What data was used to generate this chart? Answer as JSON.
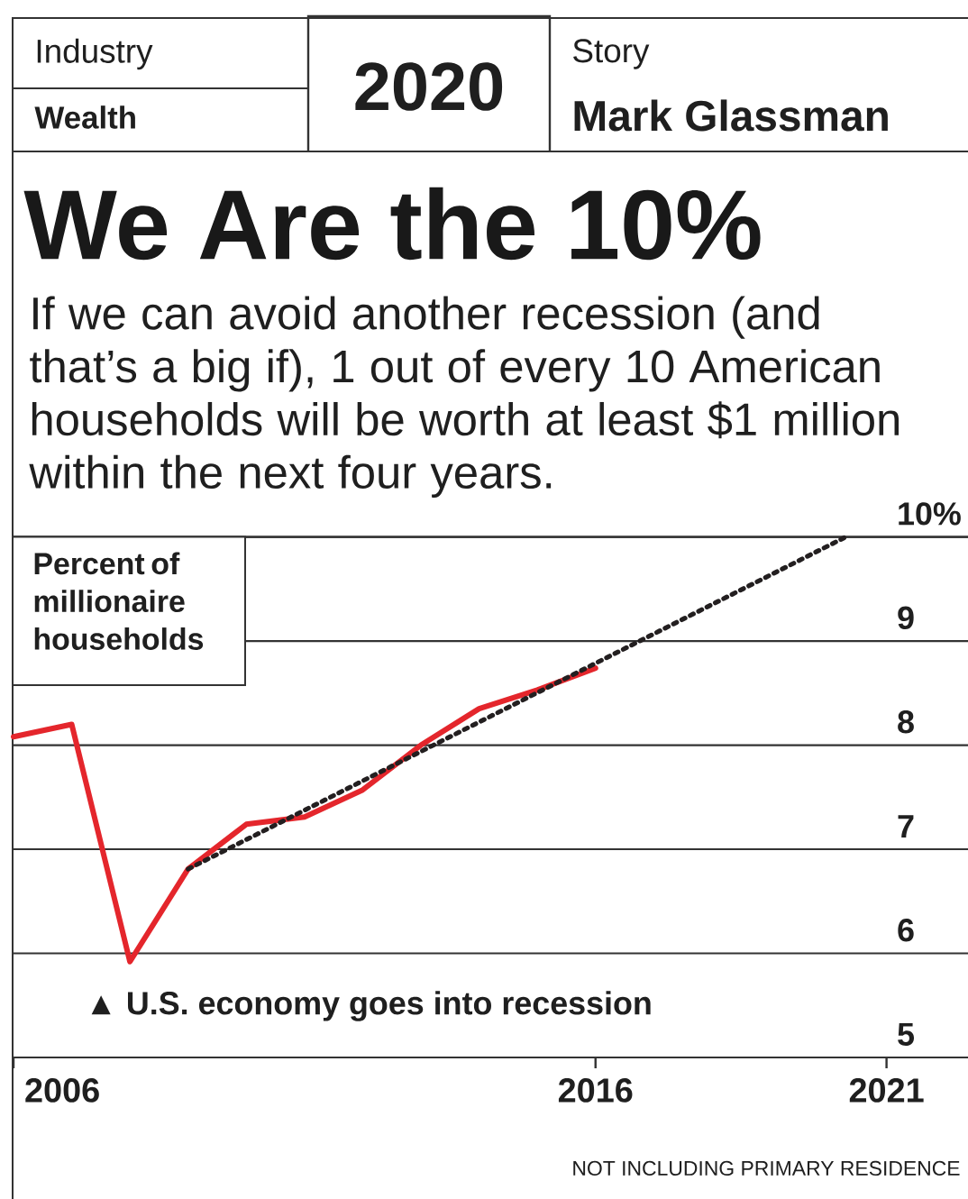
{
  "chart_data": {
    "type": "line",
    "title": "We Are the 10%",
    "subtitle": "If we can avoid another recession (and that’s a big if), 1 out of every 10 American households will be worth at least $1 million within the next four years.",
    "ylabel": "Percent of millionaire households",
    "x": [
      2006,
      2007,
      2008,
      2009,
      2010,
      2011,
      2012,
      2013,
      2014,
      2015,
      2016
    ],
    "series": [
      {
        "color": "#e4262c",
        "line_style": "solid",
        "values": [
          8.08,
          8.2,
          5.92,
          6.81,
          7.24,
          7.31,
          7.57,
          8.0,
          8.35,
          8.53,
          8.74
        ]
      },
      {
        "type": "line",
        "color": "#231f20",
        "line_style": "dotted",
        "x": [
          2009,
          2020.3
        ],
        "values": [
          6.81,
          10.0
        ]
      }
    ],
    "xlim": [
      2006,
      2022.4
    ],
    "ylim": [
      5,
      10
    ],
    "xticks": [
      2006,
      2016,
      2021
    ],
    "yticks": [
      5,
      6,
      7,
      8,
      9,
      {
        "value": 10,
        "label": "10%"
      }
    ],
    "grid": "y",
    "annotations": [
      "Industry",
      "Wealth",
      "2020",
      "Story",
      "Mark Glassman",
      "▲ U.S. economy goes into recession",
      "NOT INCLUDING PRIMARY RESIDENCE"
    ]
  }
}
